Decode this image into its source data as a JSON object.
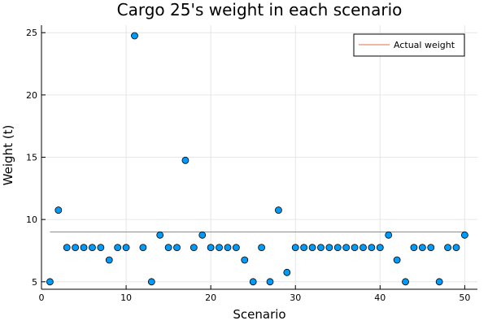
{
  "chart_data": {
    "type": "scatter",
    "title": "Cargo 25's weight in each scenario",
    "xlabel": "Scenario",
    "ylabel": "Weight (t)",
    "xlim": [
      0,
      51.5
    ],
    "ylim": [
      4.4,
      25.6
    ],
    "xticks": [
      0,
      10,
      20,
      30,
      40,
      50
    ],
    "yticks": [
      5,
      10,
      15,
      20,
      25
    ],
    "grid": true,
    "legend_position": "top-right",
    "series": [
      {
        "type": "scatter",
        "color": "#009AF9",
        "x": [
          1,
          2,
          3,
          4,
          5,
          6,
          7,
          8,
          9,
          10,
          11,
          12,
          13,
          14,
          15,
          16,
          17,
          18,
          19,
          20,
          21,
          22,
          23,
          24,
          25,
          26,
          27,
          28,
          29,
          30,
          31,
          32,
          33,
          34,
          35,
          36,
          37,
          38,
          39,
          40,
          41,
          42,
          43,
          44,
          45,
          46,
          47,
          48,
          49,
          50
        ],
        "values": [
          5,
          10.75,
          7.75,
          7.75,
          7.75,
          7.75,
          7.75,
          6.75,
          7.75,
          7.75,
          24.75,
          7.75,
          5,
          8.75,
          7.75,
          7.75,
          14.75,
          7.75,
          8.75,
          7.75,
          7.75,
          7.75,
          7.75,
          6.75,
          5,
          7.75,
          5,
          10.75,
          5.75,
          7.75,
          7.75,
          7.75,
          7.75,
          7.75,
          7.75,
          7.75,
          7.75,
          7.75,
          7.75,
          7.75,
          8.75,
          6.75,
          5,
          7.75,
          7.75,
          7.75,
          5,
          7.75,
          7.75,
          8.75
        ]
      },
      {
        "name": "Actual weight",
        "type": "line",
        "color": "#E26F46",
        "x": [
          1,
          50
        ],
        "values": [
          9,
          9
        ]
      }
    ]
  }
}
